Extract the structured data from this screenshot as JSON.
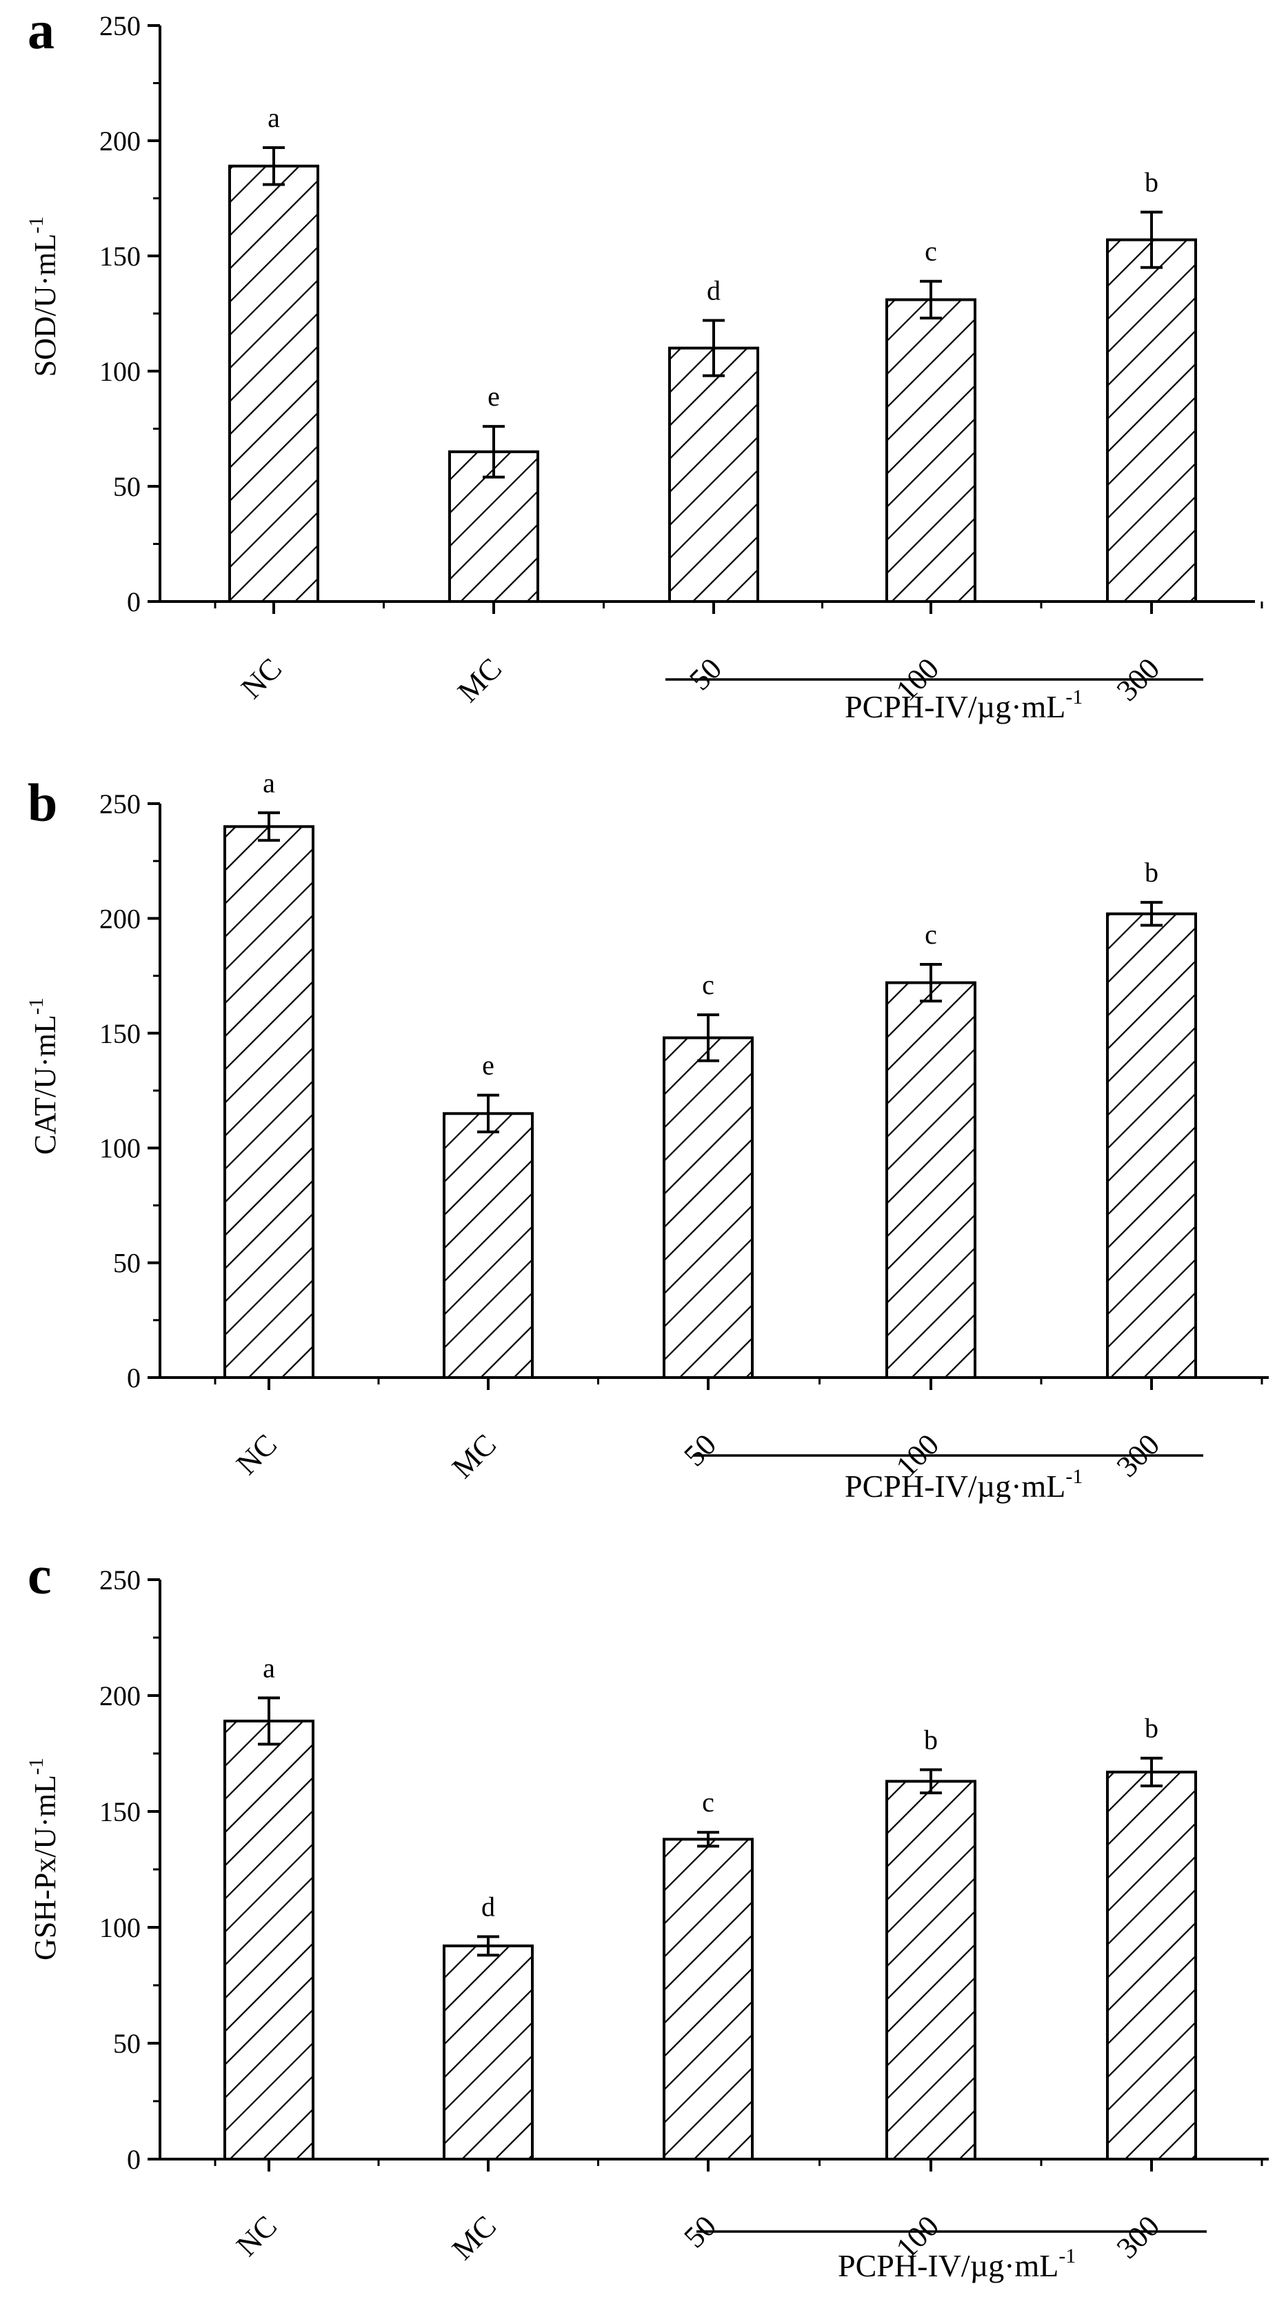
{
  "colors": {
    "bar_fill": "#ffffff",
    "stroke": "#000000"
  },
  "charts": [
    {
      "panel_letter": "a",
      "ylabel_main": "SOD/U·mL",
      "ylabel_sup": "-1",
      "group_label_main": "PCPH-IV/µg·mL",
      "group_label_sup": "-1"
    },
    {
      "panel_letter": "b",
      "ylabel_main": "CAT/U·mL",
      "ylabel_sup": "-1",
      "group_label_main": "PCPH-IV/µg·mL",
      "group_label_sup": "-1"
    },
    {
      "panel_letter": "c",
      "ylabel_main": "GSH-Px/U·mL",
      "ylabel_sup": "-1",
      "group_label_main": "PCPH-IV/µg·mL",
      "group_label_sup": "-1"
    }
  ],
  "chart_data": [
    {
      "type": "bar",
      "title": "a",
      "categories": [
        "NC",
        "MC",
        "50",
        "100",
        "300"
      ],
      "values": [
        189,
        65,
        110,
        131,
        157
      ],
      "errors": [
        8,
        11,
        12,
        8,
        12
      ],
      "significance": [
        "a",
        "e",
        "d",
        "c",
        "b"
      ],
      "xlabel": "PCPH-IV/µg·mL-1",
      "ylabel": "SOD/U·mL-1",
      "ylim": [
        0,
        250
      ],
      "yticks": [
        0,
        50,
        100,
        150,
        200,
        250
      ]
    },
    {
      "type": "bar",
      "title": "b",
      "categories": [
        "NC",
        "MC",
        "50",
        "100",
        "300"
      ],
      "values": [
        240,
        115,
        148,
        172,
        202
      ],
      "errors": [
        6,
        8,
        10,
        8,
        5
      ],
      "significance": [
        "a",
        "e",
        "c",
        "c",
        "b"
      ],
      "xlabel": "PCPH-IV/µg·mL-1",
      "ylabel": "CAT/U·mL-1",
      "ylim": [
        0,
        250
      ],
      "yticks": [
        0,
        50,
        100,
        150,
        200,
        250
      ]
    },
    {
      "type": "bar",
      "title": "c",
      "categories": [
        "NC",
        "MC",
        "50",
        "100",
        "300"
      ],
      "values": [
        189,
        92,
        138,
        163,
        167
      ],
      "errors": [
        10,
        4,
        3,
        5,
        6
      ],
      "significance": [
        "a",
        "d",
        "c",
        "b",
        "b"
      ],
      "xlabel": "PCPH-IV/µg·mL-1",
      "ylabel": "GSH-Px/U·mL-1",
      "ylim": [
        0,
        250
      ],
      "yticks": [
        0,
        50,
        100,
        150,
        200,
        250
      ]
    }
  ]
}
